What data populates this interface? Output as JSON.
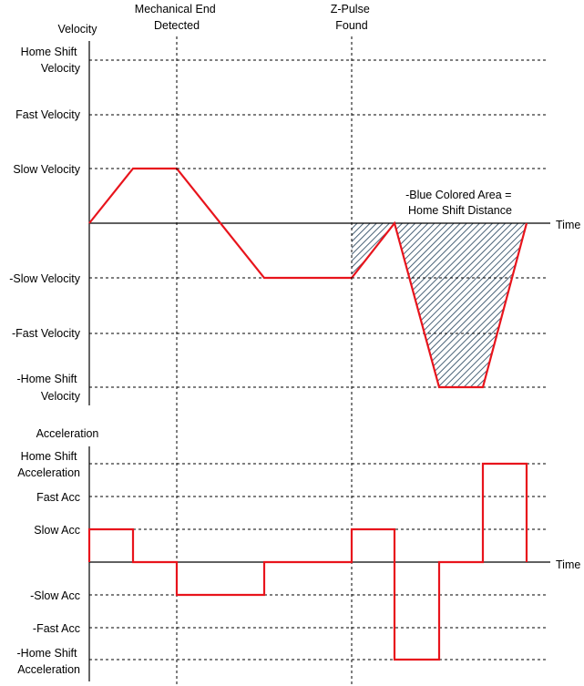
{
  "velocity_plot": {
    "axis_title": "Velocity",
    "time_label": "Time",
    "levels": [
      {
        "lines": [
          "Home Shift",
          "Velocity"
        ],
        "value": 3
      },
      {
        "lines": [
          "Fast Velocity"
        ],
        "value": 2
      },
      {
        "lines": [
          "Slow Velocity"
        ],
        "value": 1
      },
      {
        "lines": [
          "-Slow Velocity"
        ],
        "value": -1
      },
      {
        "lines": [
          "-Fast Velocity"
        ],
        "value": -2
      },
      {
        "lines": [
          "-Home Shift",
          "Velocity"
        ],
        "value": -3
      }
    ],
    "events": [
      {
        "lines": [
          "Mechanical End",
          "Detected"
        ]
      },
      {
        "lines": [
          "Z-Pulse",
          "Found"
        ]
      }
    ],
    "area_note": [
      "-Blue Colored Area =",
      "Home Shift Distance"
    ]
  },
  "acceleration_plot": {
    "axis_title": "Acceleration",
    "time_label": "Time",
    "levels": [
      {
        "lines": [
          "Home Shift",
          "Acceleration"
        ],
        "value": 3
      },
      {
        "lines": [
          "Fast Acc"
        ],
        "value": 2
      },
      {
        "lines": [
          "Slow Acc"
        ],
        "value": 1
      },
      {
        "lines": [
          "-Slow Acc"
        ],
        "value": -1
      },
      {
        "lines": [
          "-Fast Acc"
        ],
        "value": -2
      },
      {
        "lines": [
          "-Home Shift",
          "Acceleration"
        ],
        "value": -3
      }
    ]
  },
  "colors": {
    "trace": "#e8141c",
    "hatch": "#4a6378",
    "axis": "#000000"
  }
}
